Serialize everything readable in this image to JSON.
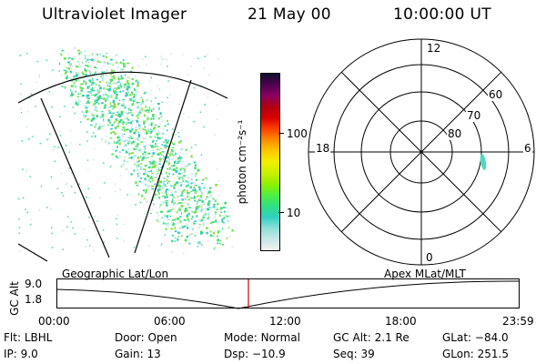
{
  "header": {
    "instrument": "Ultraviolet Imager",
    "date": "21 May 00",
    "time": "10:00:00 UT"
  },
  "colorbar": {
    "label": "photon cm⁻²s⁻¹",
    "ticks": [
      "100",
      "10"
    ],
    "colors": [
      "#101030",
      "#500050",
      "#8a0060",
      "#b00010",
      "#d80000",
      "#ff4000",
      "#ff8c00",
      "#ffc800",
      "#f0f000",
      "#c8f000",
      "#90f000",
      "#50f040",
      "#30e080",
      "#30d0c0",
      "#8ee0d8",
      "#c8e8e8",
      "#f0f0f0"
    ]
  },
  "polar_plot": {
    "mlt_labels": {
      "top": "12",
      "bottom": "0",
      "left": "18",
      "right": "6"
    },
    "lat_labels": [
      "60",
      "70",
      "80"
    ]
  },
  "timeline": {
    "ylabel": "GC Alt",
    "y_ticks": [
      "9.0",
      "1.8"
    ],
    "left_label": "Geographic Lat/Lon",
    "right_label": "Apex MLat/MLT",
    "x_ticks": [
      "00:00",
      "06:00",
      "12:00",
      "18:00",
      "23:59"
    ],
    "marker_color": "#d00000"
  },
  "info": {
    "row1": [
      {
        "key": "Flt:",
        "value": "LBHL"
      },
      {
        "key": "Door:",
        "value": "Open"
      },
      {
        "key": "Mode:",
        "value": "Normal"
      },
      {
        "key": "GC Alt:",
        "value": "2.1 Re"
      },
      {
        "key": "GLat:",
        "value": "−84.0"
      }
    ],
    "row2": [
      {
        "key": "IP:",
        "value": "9.0"
      },
      {
        "key": "Gain:",
        "value": "13"
      },
      {
        "key": "Dsp:",
        "value": "−10.9"
      },
      {
        "key": "Seq:",
        "value": "39"
      },
      {
        "key": "GLon:",
        "value": "251.5"
      }
    ]
  }
}
